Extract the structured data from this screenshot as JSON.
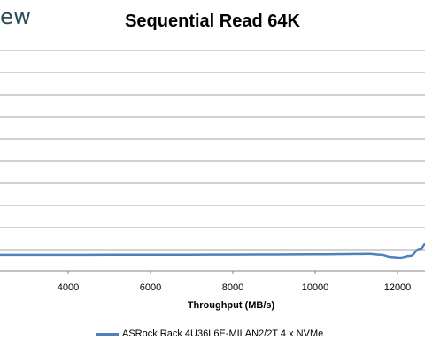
{
  "brand": {
    "text": "ew"
  },
  "chart_data": {
    "type": "line",
    "title": "Sequential Read 64K",
    "xlabel": "Throughput (MB/s)",
    "ylabel": "",
    "x_ticks": [
      4000,
      6000,
      8000,
      10000,
      12000
    ],
    "xlim": [
      2300,
      12700
    ],
    "grid": true,
    "legend": "bottom",
    "series": [
      {
        "name": "ASRock Rack 4U36L6E-MILAN2/2T 4 x NVMe",
        "color": "#4f81bd",
        "points": [
          [
            2300,
            0.28
          ],
          [
            3000,
            0.28
          ],
          [
            4000,
            0.28
          ],
          [
            5000,
            0.29
          ],
          [
            6000,
            0.29
          ],
          [
            7000,
            0.3
          ],
          [
            8000,
            0.31
          ],
          [
            9000,
            0.32
          ],
          [
            10000,
            0.34
          ],
          [
            11000,
            0.37
          ],
          [
            11300,
            0.38
          ],
          [
            11600,
            0.3
          ],
          [
            11850,
            0.06
          ],
          [
            12050,
            0.0
          ],
          [
            12300,
            0.18
          ],
          [
            12550,
            0.9
          ],
          [
            12700,
            1.45
          ]
        ]
      }
    ]
  }
}
